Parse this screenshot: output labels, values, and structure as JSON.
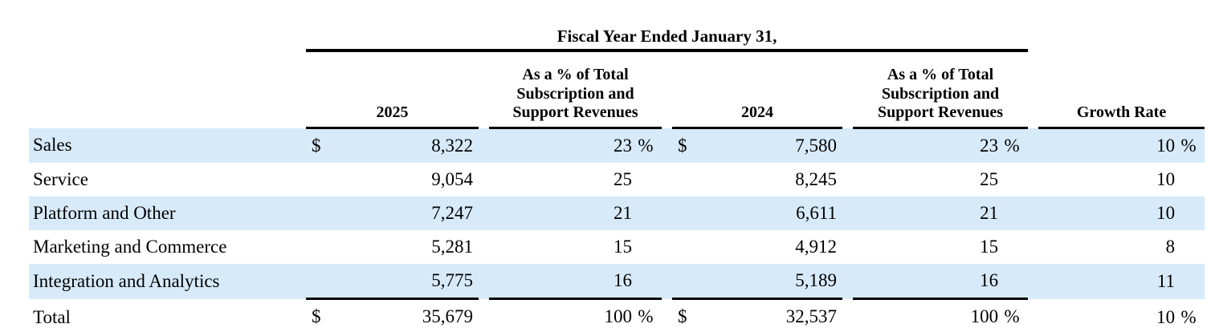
{
  "table": {
    "title": "Fiscal Year Ended January 31,",
    "headers": {
      "fy2025": "2025",
      "pct2025": "As a % of Total\nSubscription and\nSupport Revenues",
      "fy2024": "2024",
      "pct2024": "As a % of Total\nSubscription and\nSupport Revenues",
      "growth": "Growth Rate"
    },
    "rows": [
      {
        "label": "Sales",
        "cur1": "$",
        "v2025": "8,322",
        "p2025": "23",
        "ps1": "%",
        "cur2": "$",
        "v2024": "7,580",
        "p2024": "23",
        "ps2": "%",
        "growth": "10",
        "psg": "%"
      },
      {
        "label": "Service",
        "cur1": "",
        "v2025": "9,054",
        "p2025": "25",
        "ps1": "",
        "cur2": "",
        "v2024": "8,245",
        "p2024": "25",
        "ps2": "",
        "growth": "10",
        "psg": ""
      },
      {
        "label": "Platform and Other",
        "cur1": "",
        "v2025": "7,247",
        "p2025": "21",
        "ps1": "",
        "cur2": "",
        "v2024": "6,611",
        "p2024": "21",
        "ps2": "",
        "growth": "10",
        "psg": ""
      },
      {
        "label": "Marketing and Commerce",
        "cur1": "",
        "v2025": "5,281",
        "p2025": "15",
        "ps1": "",
        "cur2": "",
        "v2024": "4,912",
        "p2024": "15",
        "ps2": "",
        "growth": "8",
        "psg": ""
      },
      {
        "label": "Integration and Analytics",
        "cur1": "",
        "v2025": "5,775",
        "p2025": "16",
        "ps1": "",
        "cur2": "",
        "v2024": "5,189",
        "p2024": "16",
        "ps2": "",
        "growth": "11",
        "psg": ""
      },
      {
        "label": "Total",
        "cur1": "$",
        "v2025": "35,679",
        "p2025": "100",
        "ps1": "%",
        "cur2": "$",
        "v2024": "32,537",
        "p2024": "100",
        "ps2": "%",
        "growth": "10",
        "psg": "%"
      }
    ]
  },
  "colors": {
    "row_highlight": "#D7EAF9",
    "rule": "#000000",
    "text": "#000000",
    "background": "#FFFFFF"
  }
}
